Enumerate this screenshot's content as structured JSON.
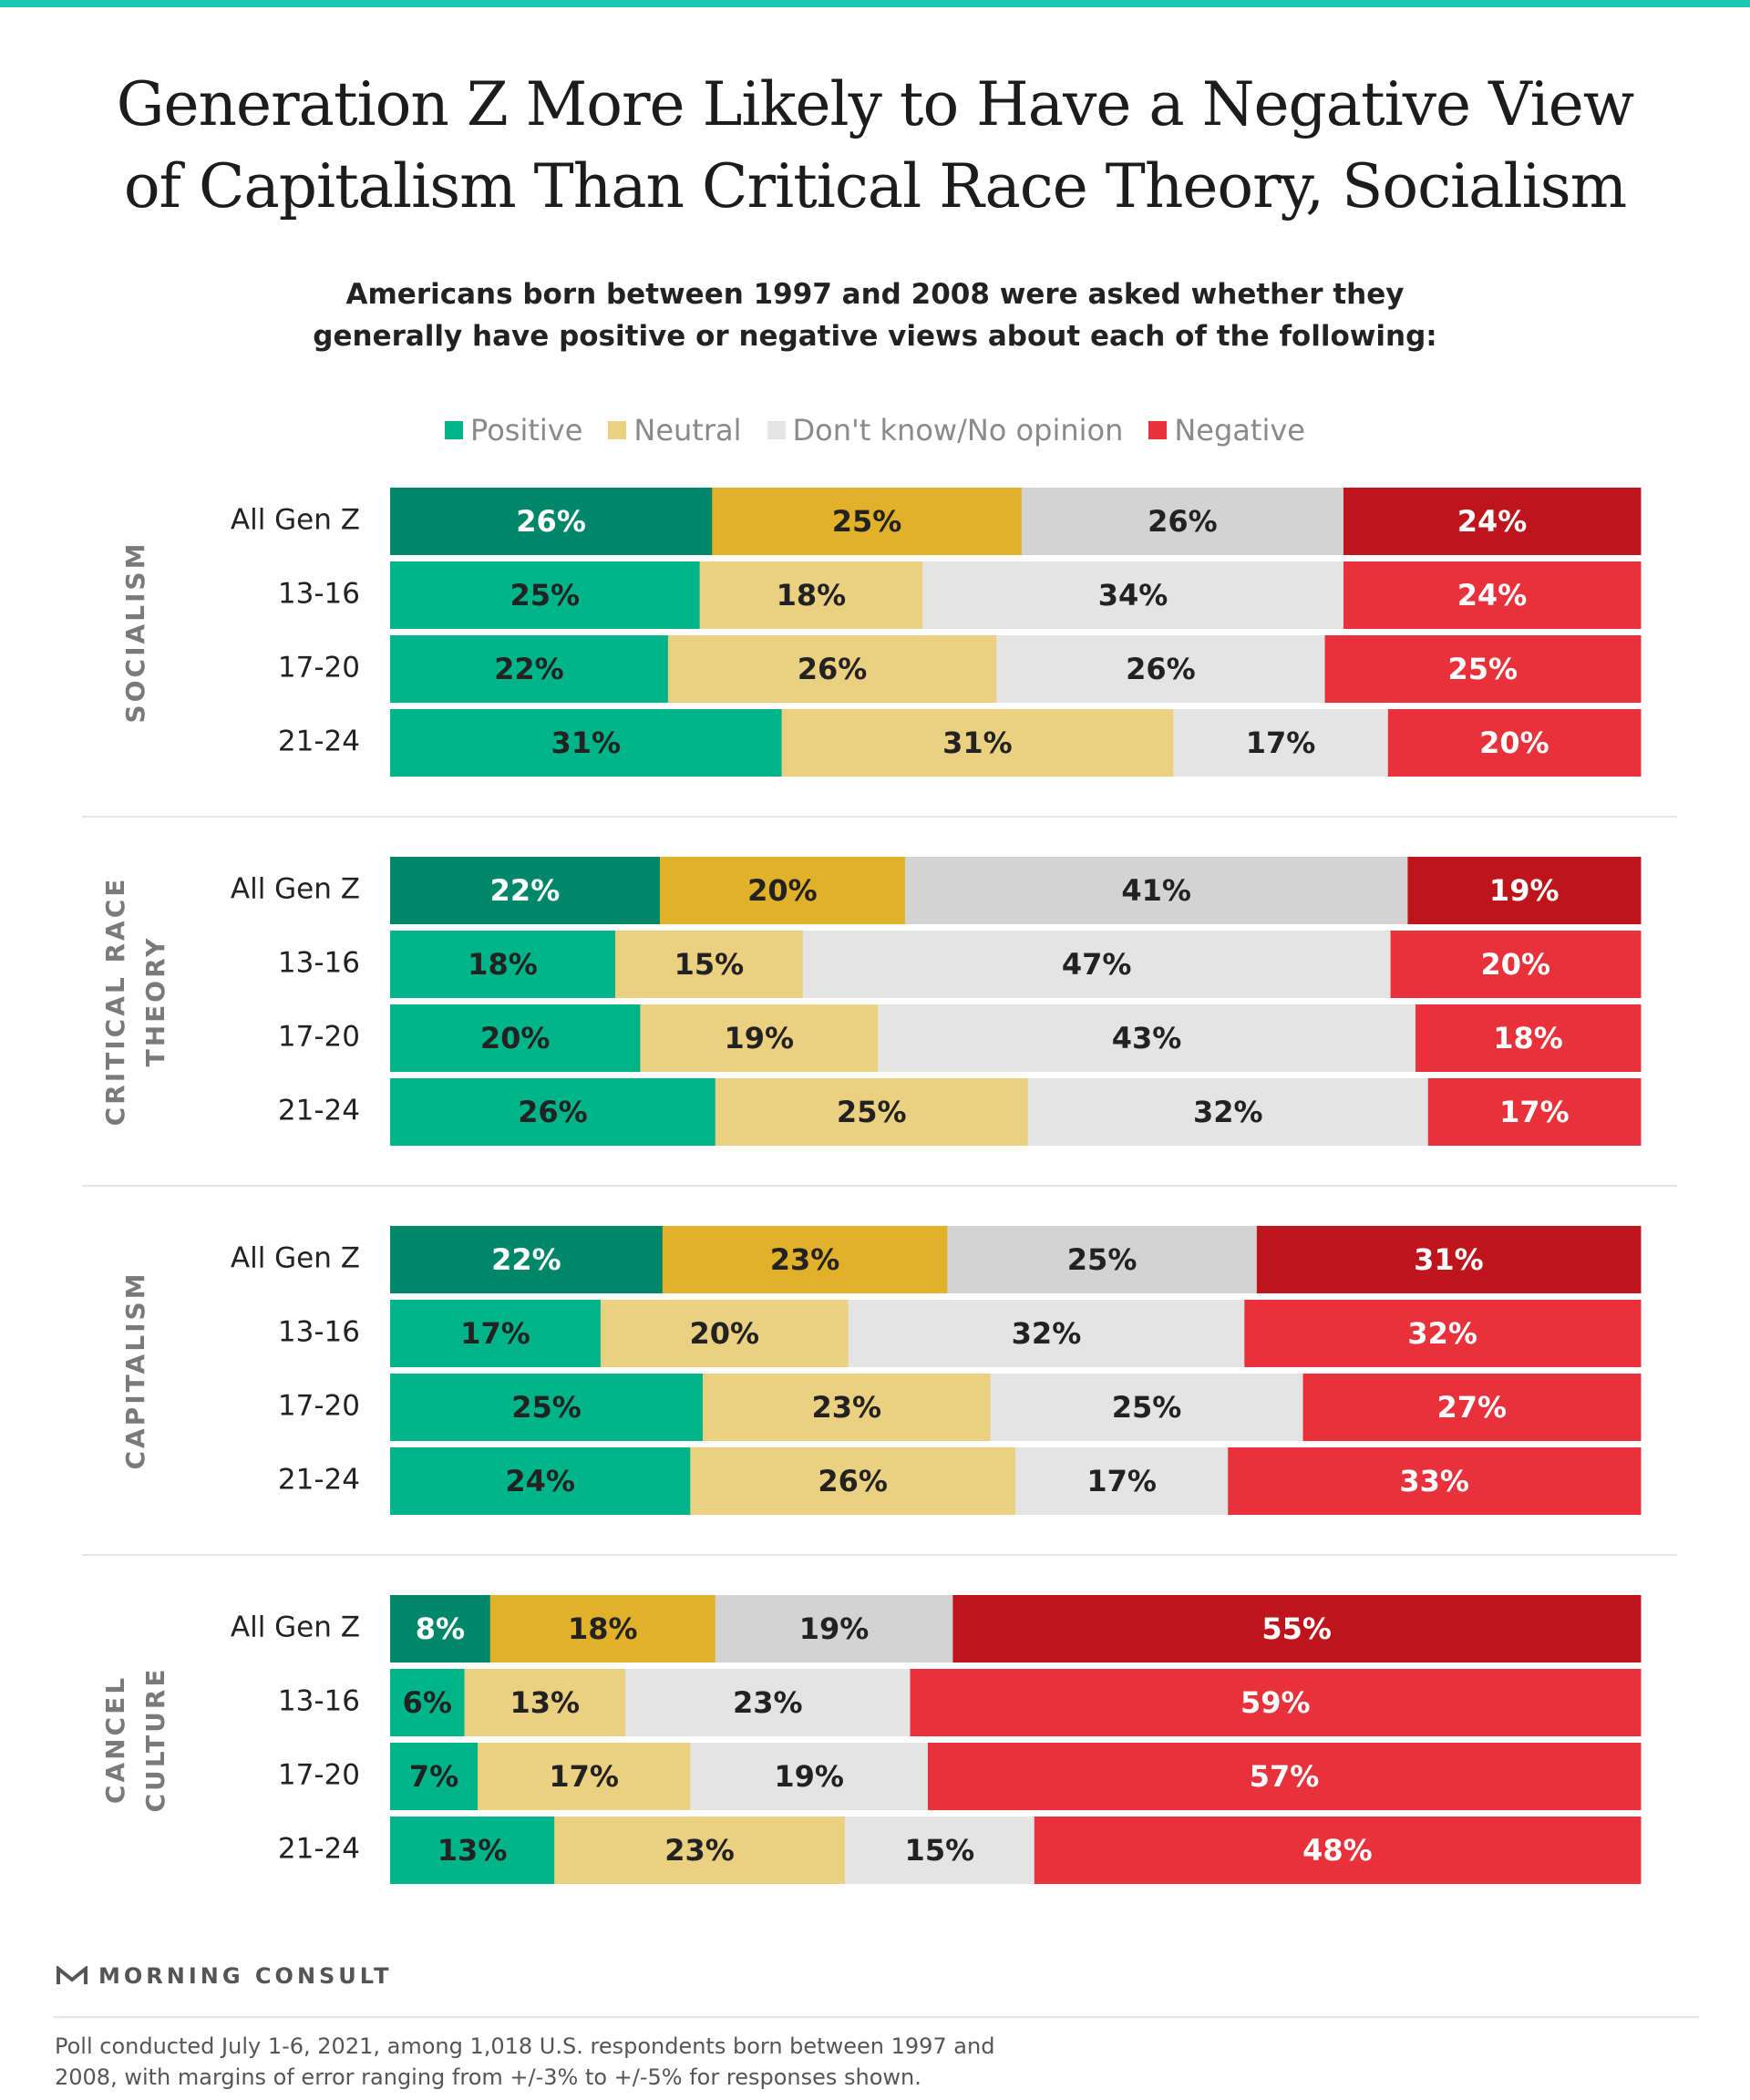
{
  "title_lines": [
    "Generation Z More Likely to Have a Negative View",
    "of Capitalism Than Critical Race Theory, Socialism"
  ],
  "subtitle_lines": [
    "Americans born between 1997 and 2008 were asked whether they",
    "generally have positive or negative views about each of the following:"
  ],
  "colors": {
    "accent_top": "#1cc7b4",
    "positive": "#00b48a",
    "positive_total": "#00876a",
    "neutral": "#ecd081",
    "neutral_total": "#e1b12a",
    "dontknow": "#e4e4e4",
    "dontknow_total": "#d3d3d3",
    "negative": "#e8313a",
    "negative_total": "#be141b"
  },
  "legend": [
    {
      "label": "Positive",
      "color": "#00b48a"
    },
    {
      "label": "Neutral",
      "color": "#ecd081"
    },
    {
      "label": "Don't know/No opinion",
      "color": "#e4e4e4"
    },
    {
      "label": "Negative",
      "color": "#e8313a"
    }
  ],
  "chart_data": {
    "type": "bar",
    "orientation": "horizontal",
    "stacked": true,
    "series": [
      "Positive",
      "Neutral",
      "Don't know/No opinion",
      "Negative"
    ],
    "groups": [
      {
        "label_lines": [
          "SOCIALISM"
        ],
        "rows": [
          {
            "label": "All Gen Z",
            "values": [
              26,
              25,
              26,
              24
            ]
          },
          {
            "label": "13-16",
            "values": [
              25,
              18,
              34,
              24
            ]
          },
          {
            "label": "17-20",
            "values": [
              22,
              26,
              26,
              25
            ]
          },
          {
            "label": "21-24",
            "values": [
              31,
              31,
              17,
              20
            ]
          }
        ]
      },
      {
        "label_lines": [
          "CRITICAL RACE",
          "THEORY"
        ],
        "rows": [
          {
            "label": "All Gen Z",
            "values": [
              22,
              20,
              41,
              19
            ]
          },
          {
            "label": "13-16",
            "values": [
              18,
              15,
              47,
              20
            ]
          },
          {
            "label": "17-20",
            "values": [
              20,
              19,
              43,
              18
            ]
          },
          {
            "label": "21-24",
            "values": [
              26,
              25,
              32,
              17
            ]
          }
        ]
      },
      {
        "label_lines": [
          "CAPITALISM"
        ],
        "rows": [
          {
            "label": "All Gen Z",
            "values": [
              22,
              23,
              25,
              31
            ]
          },
          {
            "label": "13-16",
            "values": [
              17,
              20,
              32,
              32
            ]
          },
          {
            "label": "17-20",
            "values": [
              25,
              23,
              25,
              27
            ]
          },
          {
            "label": "21-24",
            "values": [
              24,
              26,
              17,
              33
            ]
          }
        ]
      },
      {
        "label_lines": [
          "CANCEL",
          "CULTURE"
        ],
        "rows": [
          {
            "label": "All Gen Z",
            "values": [
              8,
              18,
              19,
              55
            ]
          },
          {
            "label": "13-16",
            "values": [
              6,
              13,
              23,
              59
            ]
          },
          {
            "label": "17-20",
            "values": [
              7,
              17,
              19,
              57
            ]
          },
          {
            "label": "21-24",
            "values": [
              13,
              23,
              15,
              48
            ]
          }
        ]
      }
    ],
    "value_suffix": "%"
  },
  "brand": "MORNING CONSULT",
  "footnote_lines": [
    "Poll conducted July 1-6, 2021, among 1,018 U.S. respondents born between 1997 and",
    "2008, with margins of error ranging from +/-3% to +/-5% for responses shown."
  ]
}
